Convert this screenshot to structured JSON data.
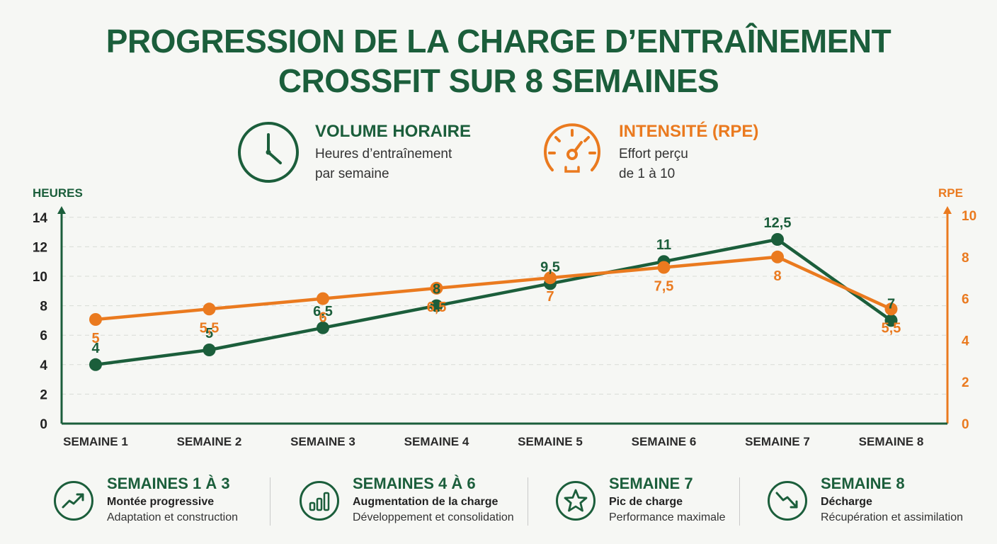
{
  "title": {
    "line1": "PROGRESSION DE LA CHARGE D’ENTRAÎNEMENT",
    "line2": "CROSSFIT SUR 8 SEMAINES"
  },
  "legend": {
    "volume": {
      "name": "VOLUME HORAIRE",
      "desc_line1": "Heures d’entraînement",
      "desc_line2": "par semaine",
      "icon": "clock-icon",
      "color": "#1b5e3b"
    },
    "intensity": {
      "name": "INTENSITÉ (RPE)",
      "desc_line1": "Effort perçu",
      "desc_line2": "de 1 à 10",
      "icon": "gauge-icon",
      "color": "#ea7a1f"
    }
  },
  "chart_data": {
    "type": "line",
    "categories": [
      "SEMAINE 1",
      "SEMAINE 2",
      "SEMAINE 3",
      "SEMAINE 4",
      "SEMAINE 5",
      "SEMAINE 6",
      "SEMAINE 7",
      "SEMAINE 8"
    ],
    "y_left": {
      "label": "HEURES",
      "ticks": [
        "0",
        "2",
        "4",
        "6",
        "8",
        "10",
        "12",
        "14"
      ],
      "ylim": [
        0,
        14
      ]
    },
    "y_right": {
      "label": "RPE",
      "ticks": [
        "0",
        "2",
        "4",
        "6",
        "8",
        "10"
      ],
      "ylim": [
        0,
        10
      ]
    },
    "grid": true,
    "series": [
      {
        "axis": "left",
        "color": "#1b5e3b",
        "values": [
          4,
          5,
          6.5,
          8,
          9.5,
          11,
          12.5,
          7
        ],
        "labels": [
          "4",
          "5",
          "6,5",
          "8",
          "9,5",
          "11",
          "12,5",
          "7"
        ]
      },
      {
        "axis": "right",
        "color": "#ea7a1f",
        "values": [
          5,
          5.5,
          6,
          6.5,
          7,
          7.5,
          8,
          5.5
        ],
        "labels": [
          "5",
          "5,5",
          "6",
          "6,5",
          "7",
          "7,5",
          "8",
          "5,5"
        ]
      }
    ]
  },
  "phases": [
    {
      "title": "SEMAINES 1 À 3",
      "subtitle": "Montée progressive",
      "desc": "Adaptation et construction",
      "icon": "trend-up-icon"
    },
    {
      "title": "SEMAINES 4 À 6",
      "subtitle": "Augmentation de la charge",
      "desc": "Développement et consolidation",
      "icon": "bar-chart-icon"
    },
    {
      "title": "SEMAINE 7",
      "subtitle": "Pic de charge",
      "desc": "Performance maximale",
      "icon": "star-icon"
    },
    {
      "title": "SEMAINE 8",
      "subtitle": "Décharge",
      "desc": "Récupération et assimilation",
      "icon": "trend-down-icon"
    }
  ]
}
